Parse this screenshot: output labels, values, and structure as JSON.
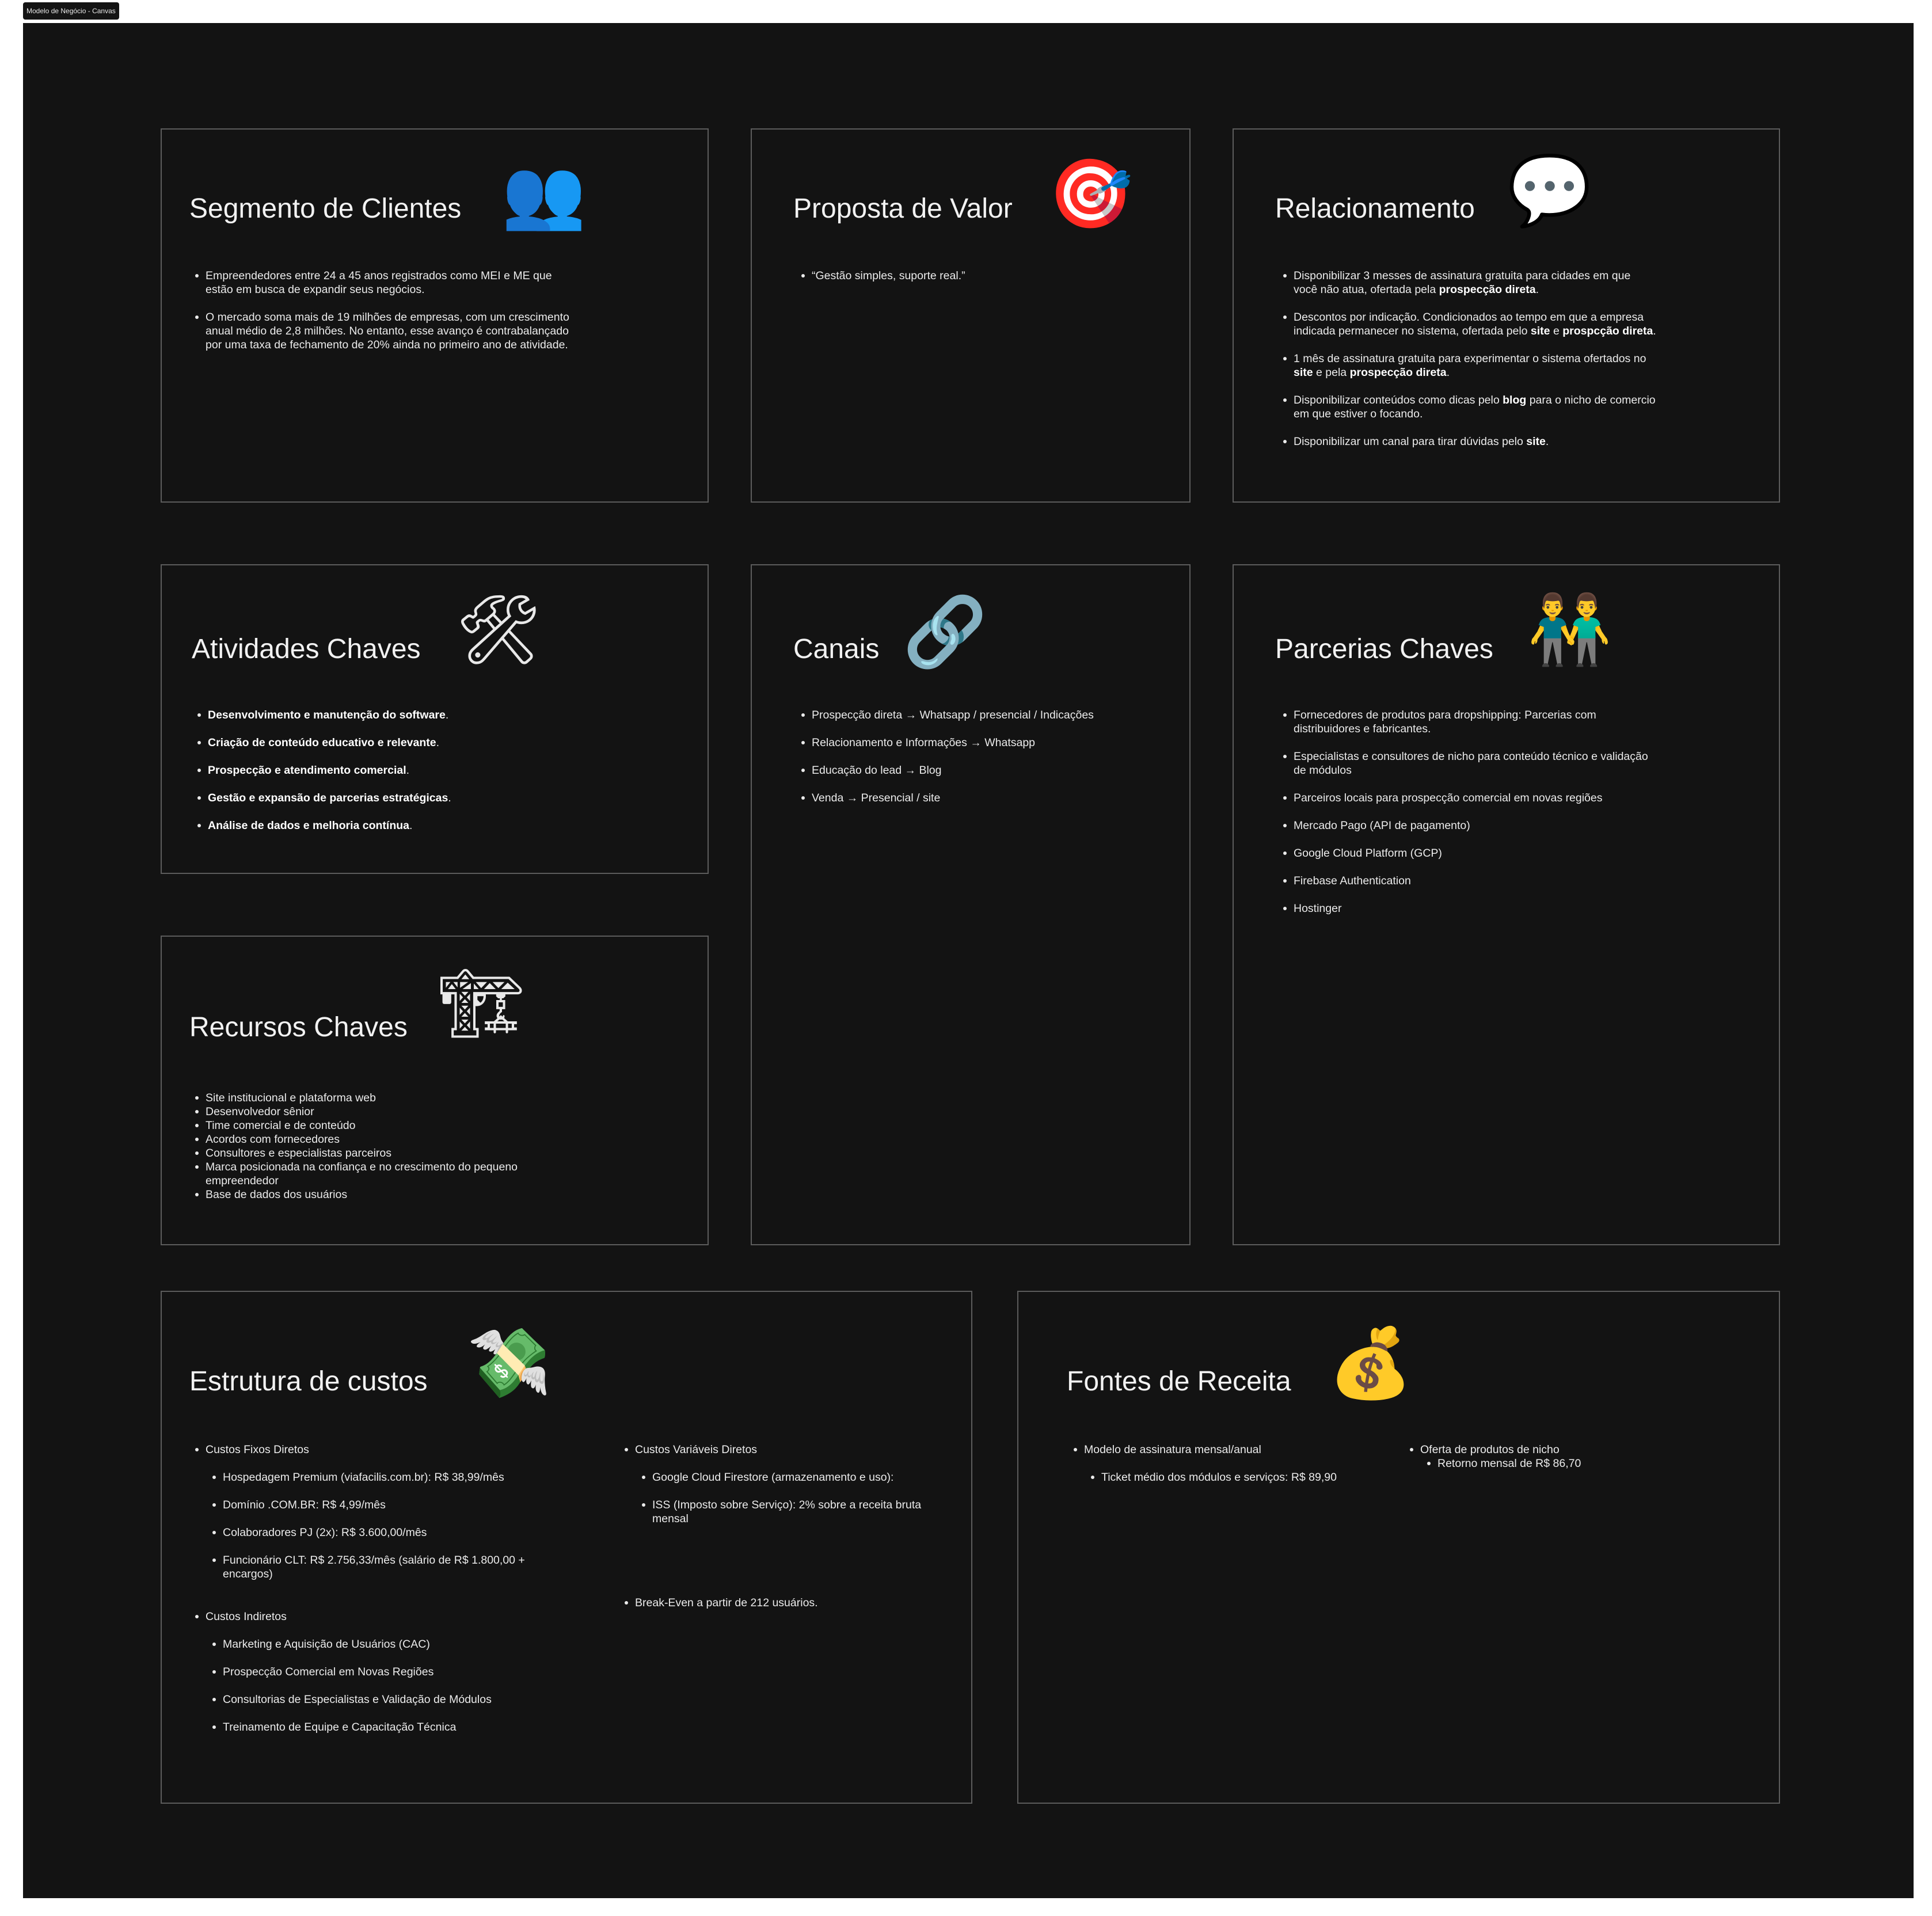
{
  "frame_label": "Modelo de Negócio - Canvas",
  "segmento": {
    "title": "Segmento de Clientes",
    "icon": "busts-in-silhouette-icon",
    "items": [
      "Empreendedores entre 24 a 45 anos registrados como MEI e ME que estão em busca de expandir seus negócios.",
      "O mercado soma mais de 19 milhões de empresas, com um crescimento anual médio de 2,8 milhões. No entanto, esse avanço é contrabalançado por uma taxa de fechamento de 20% ainda no primeiro ano de atividade."
    ]
  },
  "proposta": {
    "title": "Proposta de Valor",
    "icon": "direct-hit-target-icon",
    "items": [
      "“Gestão simples, suporte real.”"
    ]
  },
  "relacionamento": {
    "title": "Relacionamento",
    "icon": "speech-balloon-icon",
    "items": [
      {
        "a": "Disponibilizar 3 messes de assinatura gratuita para cidades em que você não atua, ofertada pela ",
        "b": "prospecção direta",
        "c": "."
      },
      {
        "a": "Descontos por indicação. Condicionados ao tempo em que a empresa indicada permanecer no sistema, ofertada pelo ",
        "b": "site",
        "c": " e ",
        "d": "prospcção direta",
        "e": "."
      },
      {
        "a": "1 mês de assinatura gratuita para experimentar o sistema ofertados no ",
        "b": "site",
        "c": " e pela ",
        "d": "prospecção direta",
        "e": "."
      },
      {
        "a": "Disponibilizar conteúdos como dicas pelo ",
        "b": "blog",
        "c": " para o nicho de comercio em que estiver o focando."
      },
      {
        "a": "Disponibilizar um canal para tirar dúvidas pelo ",
        "b": "site",
        "c": "."
      }
    ]
  },
  "atividades": {
    "title": "Atividades Chaves",
    "icon": "hammer-and-wrench-icon",
    "items": [
      {
        "b": "Desenvolvimento e manutenção do software",
        "c": "."
      },
      {
        "b": "Criação de conteúdo educativo e relevante",
        "c": "."
      },
      {
        "b": "Prospecção e atendimento comercial",
        "c": "."
      },
      {
        "b": "Gestão e expansão de parcerias estratégicas",
        "c": "."
      },
      {
        "b": "Análise de dados e melhoria contínua",
        "c": "."
      }
    ]
  },
  "recursos": {
    "title": "Recursos Chaves",
    "icon": "construction-crane-icon",
    "items": [
      "Site institucional e plataforma web",
      "Desenvolvedor sênior",
      "Time comercial e de conteúdo",
      "Acordos com fornecedores",
      "Consultores e especialistas parceiros",
      "Marca posicionada na confiança e no crescimento do pequeno empreendedor",
      "Base de dados dos usuários"
    ]
  },
  "canais": {
    "title": "Canais",
    "icon": "chain-links-icon",
    "items": [
      "Prospecção direta → Whatsapp / presencial / Indicações",
      "Relacionamento e Informações → Whatsapp",
      "Educação do lead → Blog",
      "Venda → Presencial / site"
    ]
  },
  "parcerias": {
    "title": "Parcerias Chaves",
    "icon": "two-men-holding-hands-icon",
    "items": [
      "Fornecedores de produtos para dropshipping: Parcerias com distribuidores e fabricantes.",
      "Especialistas e consultores de nicho para conteúdo técnico e validação de módulos",
      "Parceiros locais para prospecção comercial em novas regiões",
      "Mercado Pago (API de pagamento)",
      "Google Cloud Platform (GCP)",
      "Firebase Authentication",
      "Hostinger"
    ]
  },
  "custos": {
    "title": "Estrutura de custos",
    "icon": "money-with-wings-icon",
    "fixos_label": "Custos Fixos Diretos",
    "fixos": [
      "Hospedagem Premium (viafacilis.com.br): R$ 38,99/mês",
      "Domínio .COM.BR: R$ 4,99/mês",
      "Colaboradores PJ (2x): R$ 3.600,00/mês",
      " Funcionário CLT: R$ 2.756,33/mês (salário de R$ 1.800,00 + encargos)"
    ],
    "indiretos_label": "Custos Indiretos",
    "indiretos": [
      "Marketing e Aquisição de Usuários (CAC)",
      "Prospecção Comercial em Novas Regiões",
      "Consultorias de Especialistas e Validação de Módulos",
      "Treinamento de Equipe e Capacitação Técnica"
    ],
    "variaveis_label": "Custos Variáveis Diretos",
    "variaveis": [
      "Google Cloud Firestore (armazenamento e uso):",
      "ISS (Imposto sobre Serviço): 2% sobre a receita bruta mensal"
    ],
    "break_even": "Break-Even a partir de 212 usuários."
  },
  "receita": {
    "title": "Fontes de Receita",
    "icon": "money-bag-icon",
    "assinatura_label": "Modelo de assinatura mensal/anual",
    "assinatura_sub": "Ticket médio dos módulos e serviços: R$ 89,90",
    "oferta_label": "Oferta de produtos de nicho",
    "oferta_sub": "Retorno mensal de R$ 86,70"
  }
}
